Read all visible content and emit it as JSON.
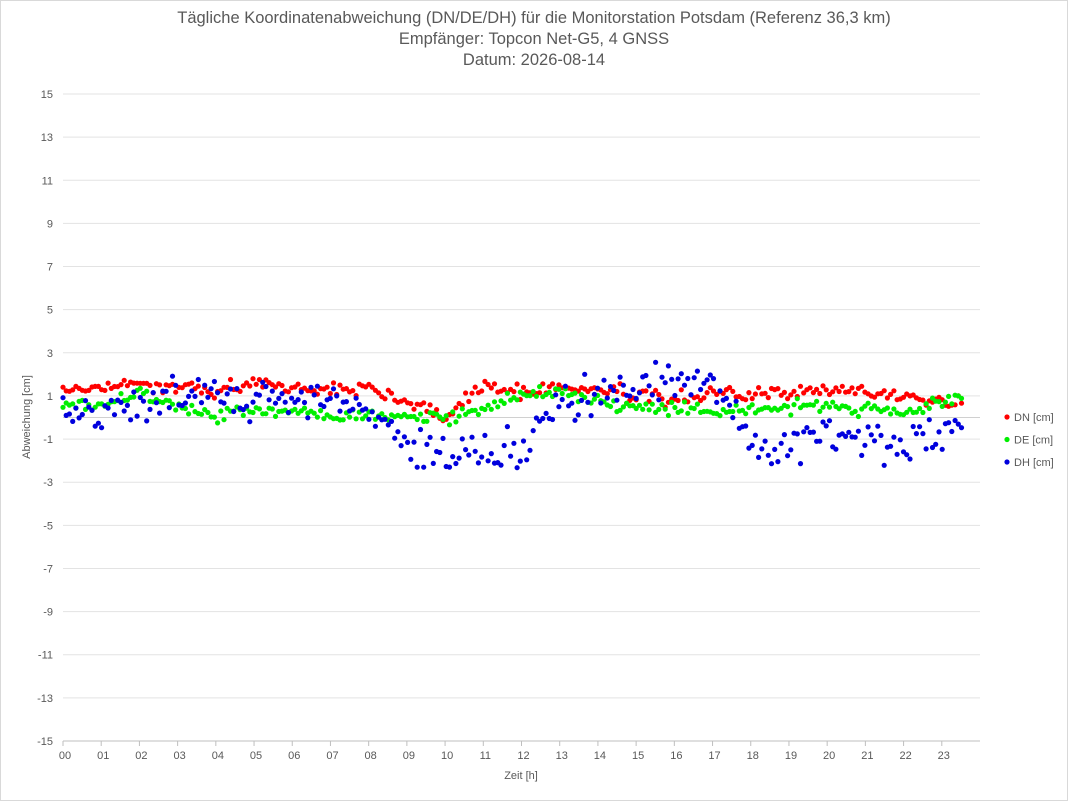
{
  "chart_data": {
    "type": "scatter",
    "title": "Tägliche Koordinatenabweichung (DN/DE/DH) für die Monitorstation Potsdam (Referenz 36,3 km)",
    "subtitle": "Empfänger: Topcon Net-G5, 4 GNSS",
    "date_line": "Datum: 2026-08-14",
    "xlabel": "Zeit [h]",
    "ylabel": "Abweichung [cm]",
    "xlim": [
      0,
      24
    ],
    "ylim": [
      -15,
      15
    ],
    "x_ticks": [
      "00",
      "01",
      "02",
      "03",
      "04",
      "05",
      "06",
      "07",
      "08",
      "09",
      "10",
      "11",
      "12",
      "13",
      "14",
      "15",
      "16",
      "17",
      "18",
      "19",
      "20",
      "21",
      "22",
      "23"
    ],
    "y_ticks": [
      "15",
      "13",
      "11",
      "9",
      "7",
      "5",
      "3",
      "1",
      "-1",
      "-3",
      "-5",
      "-7",
      "-9",
      "-11",
      "-13",
      "-15"
    ],
    "grid": "horizontal",
    "legend_position": "right",
    "series": [
      {
        "name": "DN [cm]",
        "color": "#ff0000",
        "hours": [
          0,
          1,
          2,
          3,
          4,
          5,
          6,
          7,
          8,
          9,
          10,
          11,
          12,
          13,
          14,
          15,
          16,
          17,
          18,
          19,
          20,
          21,
          22,
          23.5
        ],
        "values": [
          1.3,
          1.4,
          1.6,
          1.3,
          1.3,
          1.7,
          1.3,
          1.3,
          1.3,
          0.8,
          0.0,
          1.5,
          1.2,
          1.4,
          1.3,
          1.0,
          0.8,
          1.2,
          1.0,
          1.2,
          1.2,
          1.2,
          1.0,
          0.6
        ]
      },
      {
        "name": "DE [cm]",
        "color": "#00ee00",
        "hours": [
          0,
          1,
          2,
          3,
          4,
          5,
          6,
          7,
          8,
          9,
          10,
          11,
          12,
          13,
          14,
          15,
          16,
          17,
          18,
          19,
          20,
          21,
          22,
          23.5
        ],
        "values": [
          0.5,
          0.6,
          1.3,
          0.5,
          0.1,
          0.4,
          0.3,
          0.1,
          0.2,
          0.1,
          -0.1,
          0.5,
          1.0,
          1.2,
          0.8,
          0.4,
          0.5,
          0.3,
          0.4,
          0.5,
          0.6,
          0.3,
          0.2,
          0.8
        ]
      },
      {
        "name": "DH [cm]",
        "color": "#0000dd",
        "hours": [
          0,
          1,
          2,
          3,
          4,
          5,
          6,
          7,
          8,
          9,
          10,
          11,
          12,
          13,
          14,
          15,
          16,
          17,
          18,
          19,
          20,
          21,
          22,
          23.5
        ],
        "values": [
          0.0,
          0.5,
          0.6,
          1.0,
          1.0,
          1.0,
          0.5,
          1.0,
          0.0,
          -1.0,
          -2.2,
          -1.5,
          -1.5,
          0.8,
          0.8,
          1.2,
          2.0,
          1.5,
          -1.0,
          -1.5,
          -0.5,
          -1.0,
          -1.2,
          -0.5
        ]
      }
    ]
  }
}
